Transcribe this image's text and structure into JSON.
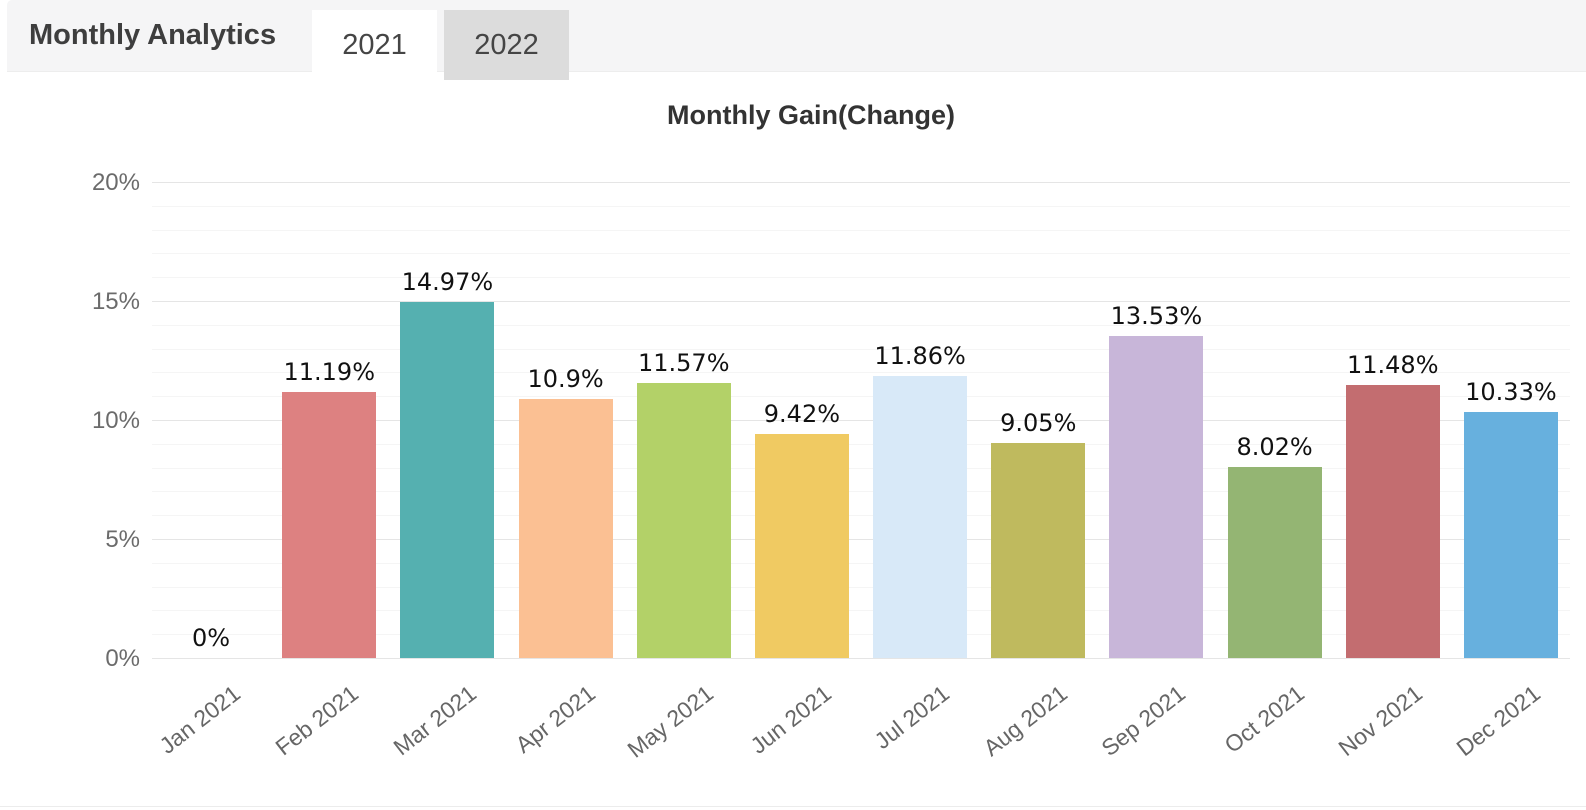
{
  "header": {
    "title": "Monthly Analytics",
    "tabs": [
      {
        "label": "2021",
        "active": true
      },
      {
        "label": "2022",
        "active": false
      }
    ]
  },
  "chart_data": {
    "type": "bar",
    "title": "Monthly Gain(Change)",
    "categories": [
      "Jan 2021",
      "Feb 2021",
      "Mar 2021",
      "Apr 2021",
      "May 2021",
      "Jun 2021",
      "Jul 2021",
      "Aug 2021",
      "Sep 2021",
      "Oct 2021",
      "Nov 2021",
      "Dec 2021"
    ],
    "values": [
      0,
      11.19,
      14.97,
      10.9,
      11.57,
      9.42,
      11.86,
      9.05,
      13.53,
      8.02,
      11.48,
      10.33
    ],
    "value_labels": [
      "0%",
      "11.19%",
      "14.97%",
      "10.9%",
      "11.57%",
      "9.42%",
      "11.86%",
      "9.05%",
      "13.53%",
      "8.02%",
      "11.48%",
      "10.33%"
    ],
    "bar_colors": [
      "",
      "#dd8181",
      "#55b0b0",
      "#fbc093",
      "#b3d168",
      "#f0ca62",
      "#d8e9f8",
      "#bfba5e",
      "#c8b6d9",
      "#94b573",
      "#c36d70",
      "#67b0de"
    ],
    "xlabel": "",
    "ylabel": "",
    "ylim": [
      0,
      20
    ],
    "y_ticks": [
      {
        "value": 0,
        "label": "0%"
      },
      {
        "value": 5,
        "label": "5%"
      },
      {
        "value": 10,
        "label": "10%"
      },
      {
        "value": 15,
        "label": "15%"
      },
      {
        "value": 20,
        "label": "20%"
      }
    ],
    "grid": {
      "major_step_pct": 5,
      "minor_step_pct": 1,
      "major_color": "#e5e5e5",
      "minor_color": "#f5f5f5"
    },
    "legend": "none",
    "value_label_color": "#111111",
    "axis_label_color": "#666666"
  }
}
